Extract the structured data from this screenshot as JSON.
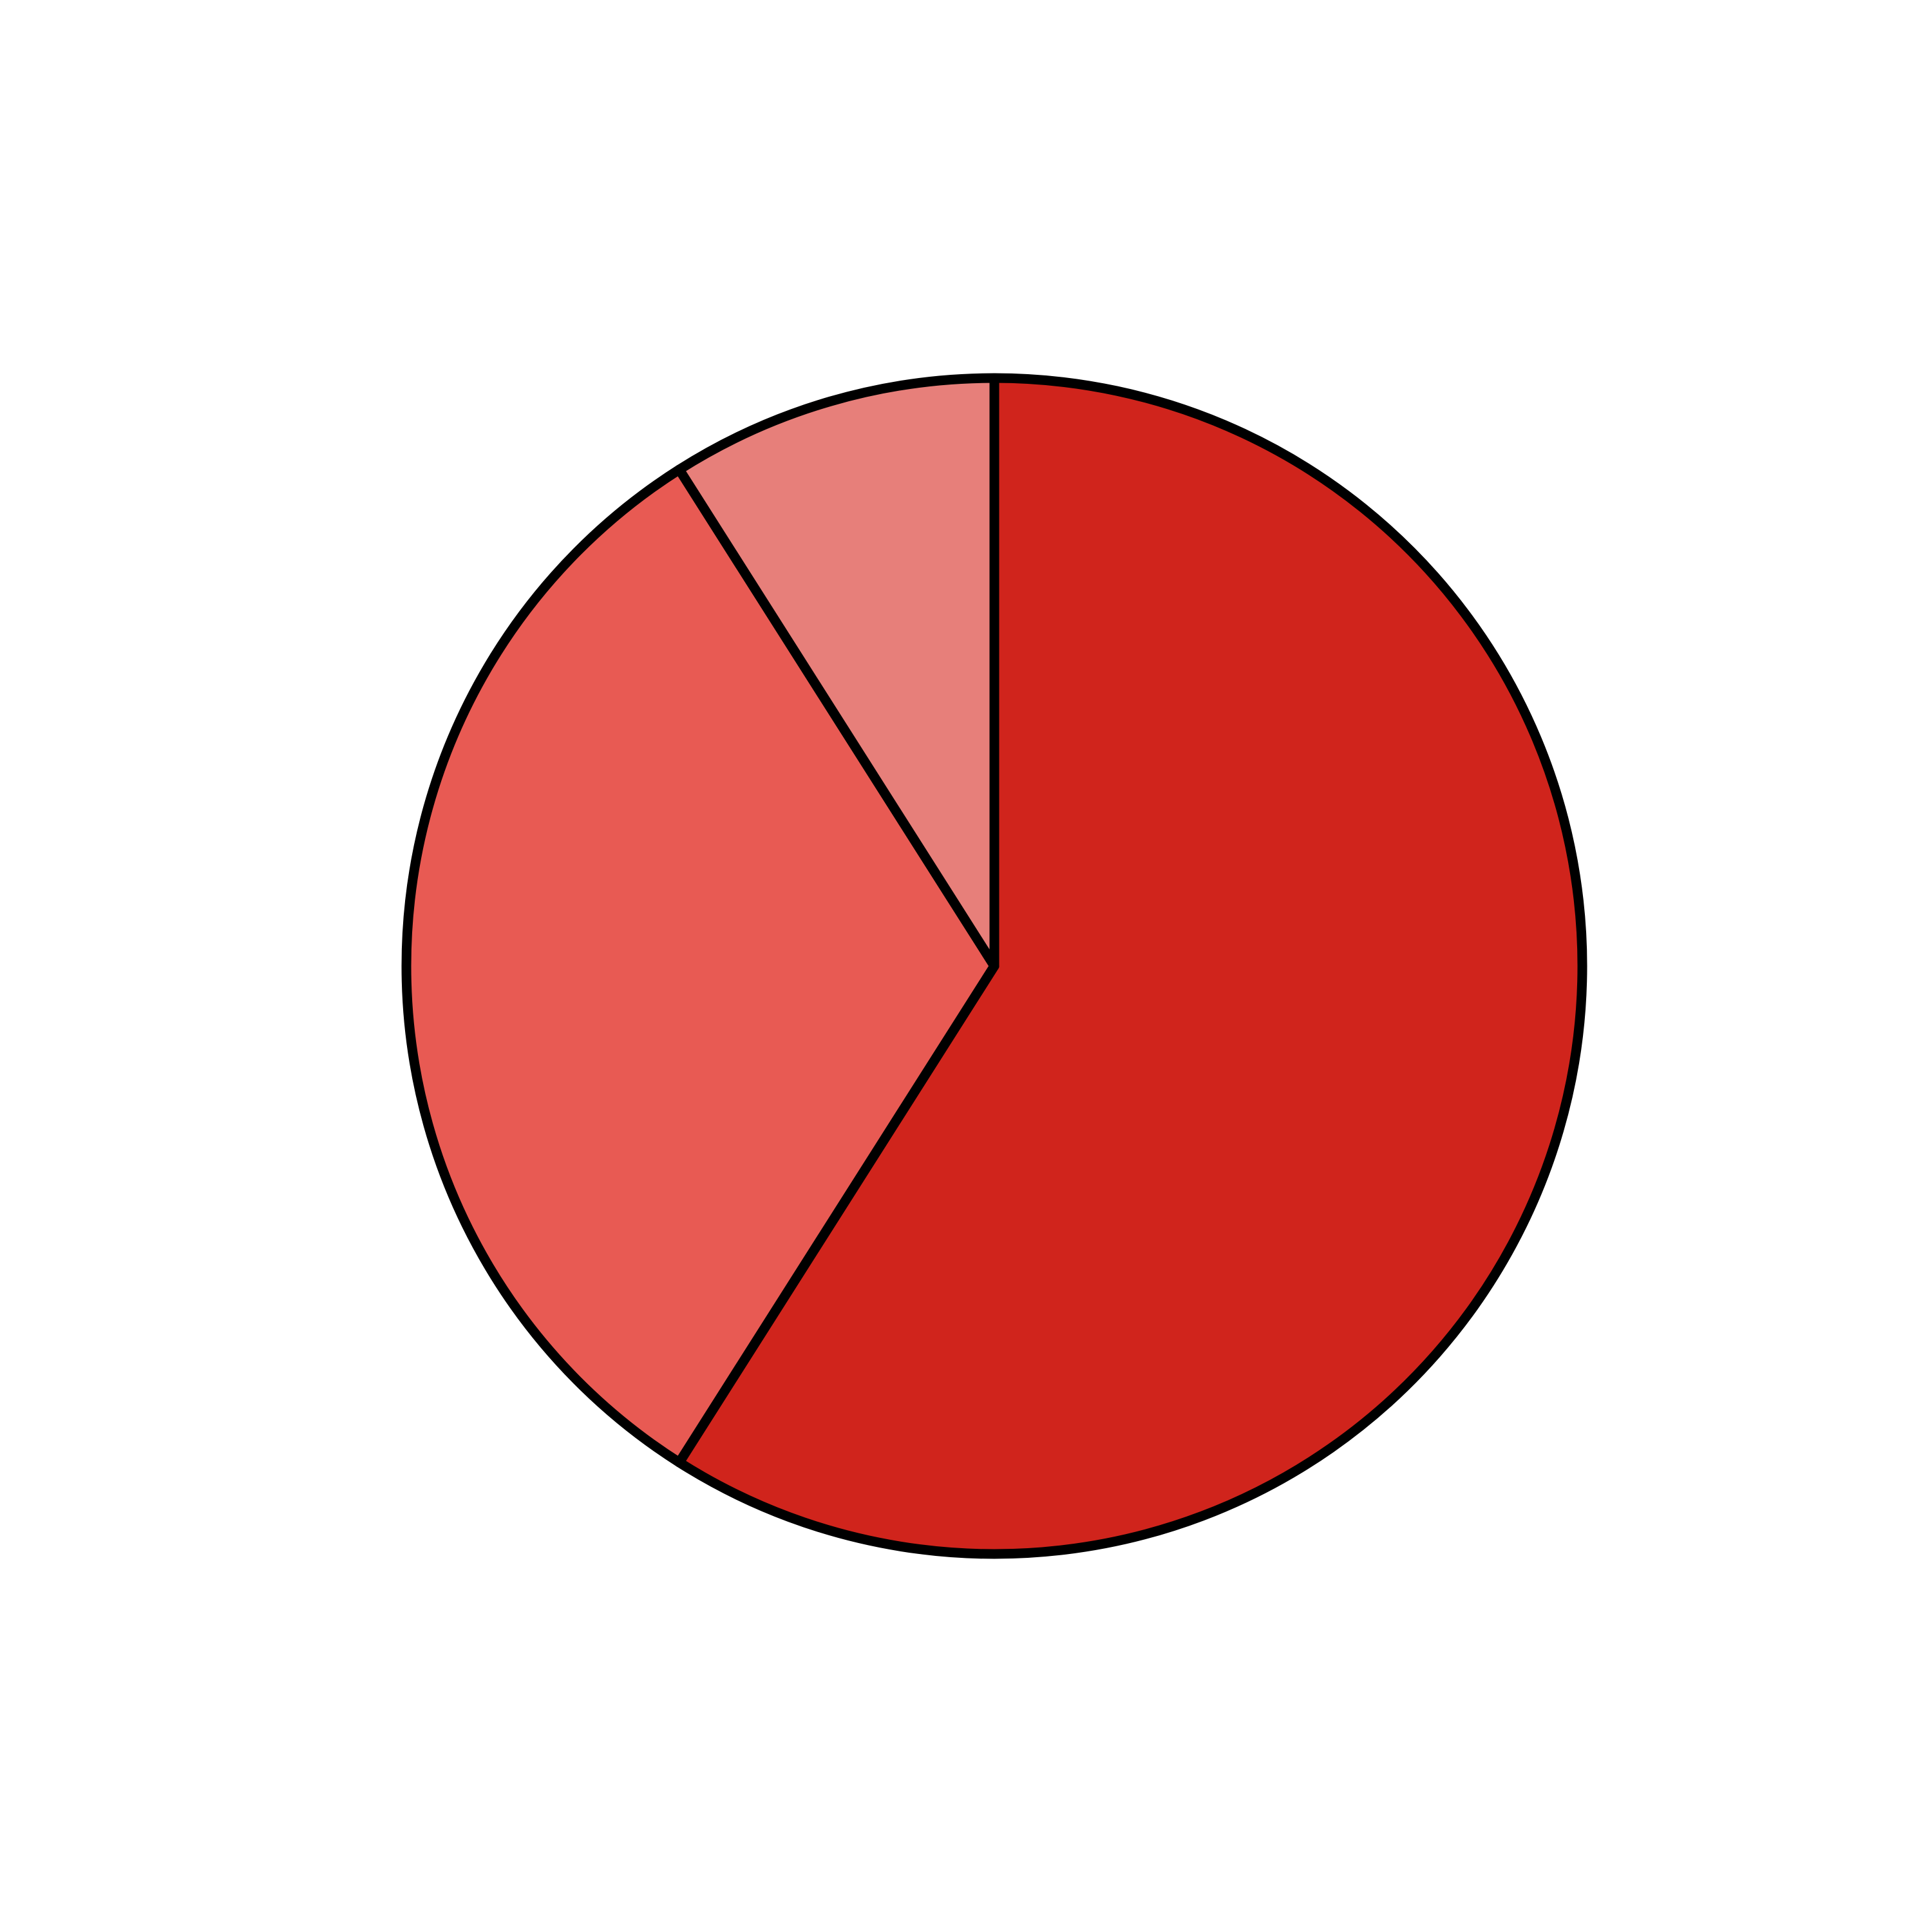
{
  "chart_data": {
    "type": "pie",
    "values": [
      59,
      32,
      9
    ],
    "colors": [
      "#d0241c",
      "#e85a53",
      "#e77f7a"
    ]
  }
}
